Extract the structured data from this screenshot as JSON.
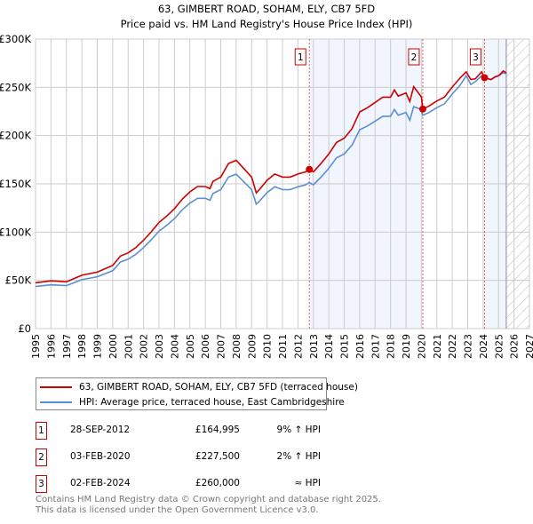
{
  "chart_data": {
    "type": "line",
    "title": "63, GIMBERT ROAD, SOHAM, ELY, CB7 5FD",
    "subtitle": "Price paid vs. HM Land Registry's House Price Index (HPI)",
    "xlim": [
      1995,
      2027
    ],
    "ylim": [
      0,
      300000
    ],
    "y_ticks": [
      0,
      50000,
      100000,
      150000,
      200000,
      250000,
      300000
    ],
    "y_tick_labels": [
      "£0",
      "£50K",
      "£100K",
      "£150K",
      "£200K",
      "£250K",
      "£300K"
    ],
    "x_tick_labels": [
      "1995",
      "1996",
      "1997",
      "1998",
      "1999",
      "2000",
      "2001",
      "2002",
      "2003",
      "2004",
      "2005",
      "2006",
      "2007",
      "2008",
      "2009",
      "2010",
      "2011",
      "2012",
      "2013",
      "2014",
      "2015",
      "2016",
      "2017",
      "2018",
      "2019",
      "2020",
      "2021",
      "2022",
      "2023",
      "2024",
      "2025",
      "2026",
      "2027"
    ],
    "grid": true,
    "shaded_ranges": [
      [
        2012.74,
        2020.09
      ],
      [
        2024.09,
        2025.5
      ]
    ],
    "forecast_hatch_from": 2025.5,
    "x": [
      1995,
      1996,
      1997,
      1997.5,
      1998,
      1999,
      2000,
      2000.5,
      2001,
      2001.5,
      2002,
      2002.5,
      2003,
      2003.5,
      2004,
      2004.5,
      2005,
      2005.5,
      2006,
      2006.3,
      2006.5,
      2007,
      2007.5,
      2008,
      2008.5,
      2009,
      2009.3,
      2009.5,
      2010,
      2010.5,
      2011,
      2011.5,
      2012,
      2012.5,
      2012.74,
      2013,
      2013.5,
      2014,
      2014.5,
      2015,
      2015.5,
      2016,
      2016.5,
      2017,
      2017.5,
      2018,
      2018.25,
      2018.5,
      2019,
      2019.25,
      2019.5,
      2020,
      2020.09,
      2020.5,
      2021,
      2021.5,
      2022,
      2022.5,
      2022.9,
      2023.2,
      2023.5,
      2023.9,
      2024.09,
      2024.5,
      2024.8,
      2025,
      2025.3,
      2025.5
    ],
    "series": [
      {
        "name": "63, GIMBERT ROAD, SOHAM, ELY, CB7 5FD (terraced house)",
        "color": "#cc0000",
        "values": [
          47500,
          49500,
          48500,
          51900,
          55300,
          58500,
          65400,
          75200,
          78500,
          83900,
          91600,
          100300,
          110100,
          116600,
          124300,
          134100,
          141700,
          147200,
          147200,
          145000,
          152600,
          157000,
          171100,
          174400,
          165700,
          157000,
          140600,
          143900,
          153700,
          160200,
          157000,
          157000,
          160200,
          162400,
          164995,
          162400,
          171100,
          180900,
          192900,
          197300,
          207100,
          224500,
          228900,
          234400,
          239800,
          239800,
          247400,
          240900,
          244200,
          235400,
          250700,
          240000,
          227500,
          230700,
          235900,
          240000,
          250300,
          259600,
          266000,
          258000,
          259000,
          266000,
          260000,
          258000,
          261000,
          262000,
          267000,
          265000
        ]
      },
      {
        "name": "HPI: Average price, terraced house, East Cambridgeshire",
        "color": "#5b8fd4",
        "values": [
          43600,
          45400,
          44500,
          47600,
          50700,
          53700,
          60000,
          69000,
          72000,
          77000,
          84000,
          92000,
          101000,
          107000,
          114000,
          123000,
          130000,
          135000,
          135000,
          133000,
          140000,
          144000,
          157000,
          160000,
          152000,
          144000,
          129000,
          132000,
          141000,
          147000,
          144000,
          144000,
          147000,
          149000,
          151400,
          149000,
          157000,
          166000,
          177000,
          181000,
          190000,
          206000,
          210000,
          215000,
          220000,
          220000,
          227000,
          221000,
          224000,
          216000,
          230000,
          227000,
          221000,
          224000,
          229000,
          233000,
          243000,
          252000,
          262000,
          253000,
          256000,
          262000,
          260000,
          258000,
          261000,
          262000,
          265000,
          264000
        ]
      }
    ],
    "sales": [
      {
        "num": "1",
        "x": 2012.74,
        "y": 164995,
        "date": "28-SEP-2012",
        "price": "£164,995",
        "hpi": "9% ↑ HPI"
      },
      {
        "num": "2",
        "x": 2020.09,
        "y": 227500,
        "date": "03-FEB-2020",
        "price": "£227,500",
        "hpi": "2% ↑ HPI"
      },
      {
        "num": "3",
        "x": 2024.09,
        "y": 260000,
        "date": "02-FEB-2024",
        "price": "£260,000",
        "hpi": "≈ HPI"
      }
    ],
    "legend_position": "bottom"
  },
  "footer": {
    "line1": "Contains HM Land Registry data © Crown copyright and database right 2025.",
    "line2": "This data is licensed under the Open Government Licence v3.0."
  }
}
